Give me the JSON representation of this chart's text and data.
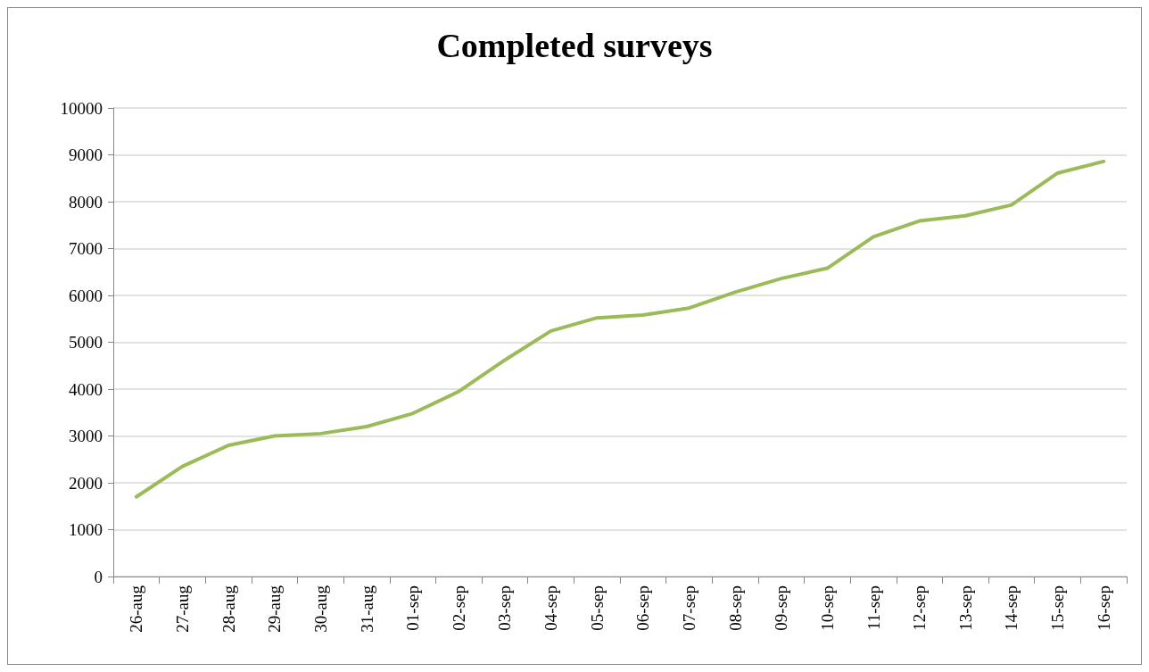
{
  "chart_data": {
    "type": "line",
    "title": "Completed surveys",
    "categories": [
      "26-aug",
      "27-aug",
      "28-aug",
      "29-aug",
      "30-aug",
      "31-aug",
      "01-sep",
      "02-sep",
      "03-sep",
      "04-sep",
      "05-sep",
      "06-sep",
      "07-sep",
      "08-sep",
      "09-sep",
      "10-sep",
      "11-sep",
      "12-sep",
      "13-sep",
      "14-sep",
      "15-sep",
      "16-sep"
    ],
    "series": [
      {
        "color": "#9bbb59",
        "values": [
          1700,
          2350,
          2800,
          3000,
          3050,
          3200,
          3480,
          3950,
          4620,
          5240,
          5520,
          5580,
          5730,
          6070,
          6360,
          6580,
          7250,
          7590,
          7700,
          7930,
          8610,
          8860
        ]
      }
    ],
    "ylim": [
      0,
      10000
    ],
    "yticks": [
      0,
      1000,
      2000,
      3000,
      4000,
      5000,
      6000,
      7000,
      8000,
      9000,
      10000
    ],
    "grid": "y",
    "marker": "none",
    "line_style": "solid"
  }
}
